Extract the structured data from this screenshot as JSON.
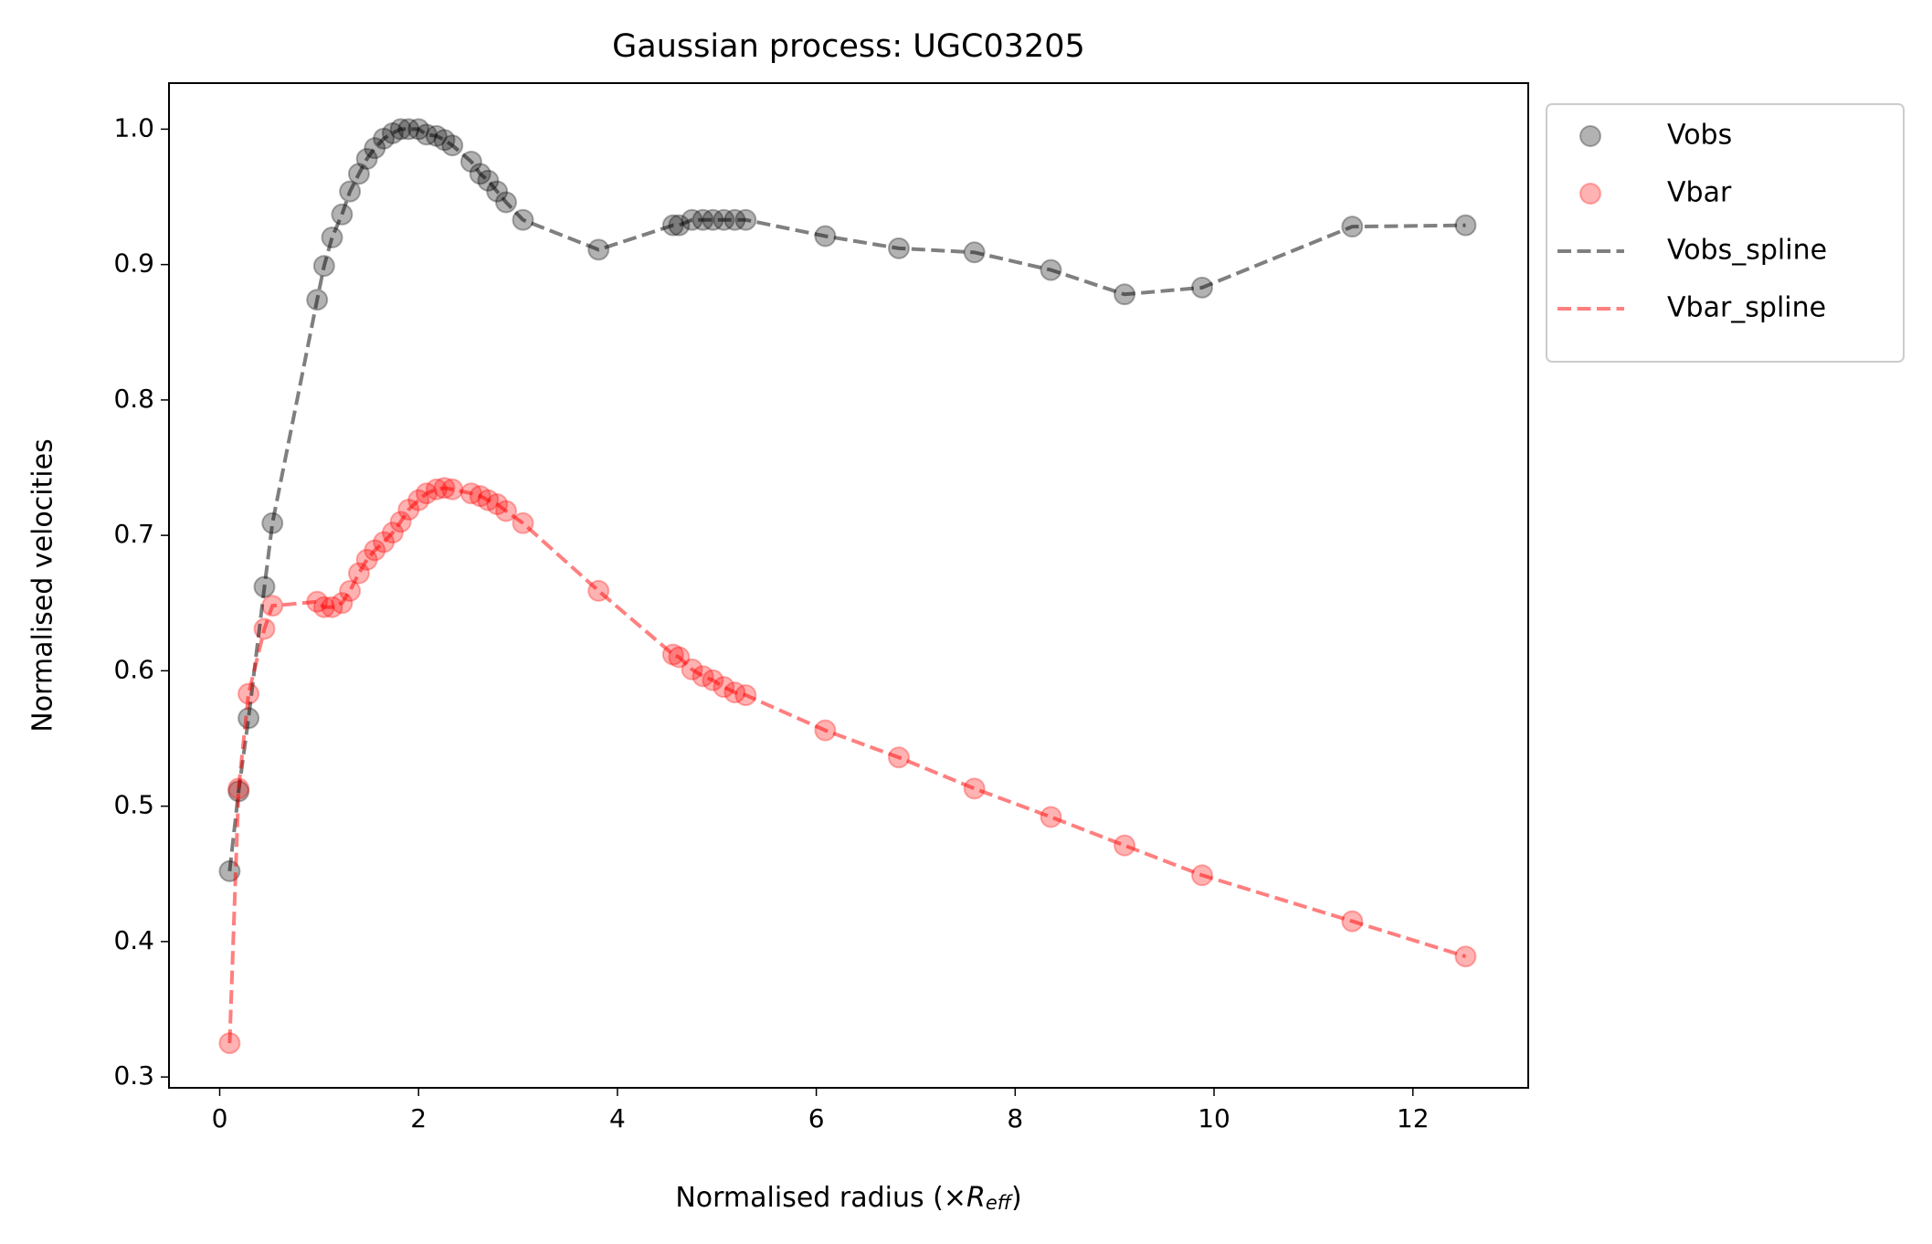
{
  "chart_data": {
    "type": "scatter",
    "title": "Gaussian process: UGC03205",
    "xlabel": [
      "Normalised radius (×",
      "R",
      "eff",
      ")"
    ],
    "ylabel": "Normalised velocities",
    "x": [
      0.1,
      0.19,
      0.29,
      0.45,
      0.53,
      0.98,
      1.05,
      1.13,
      1.23,
      1.31,
      1.4,
      1.48,
      1.56,
      1.65,
      1.74,
      1.82,
      1.9,
      2.0,
      2.08,
      2.18,
      2.26,
      2.34,
      2.53,
      2.62,
      2.7,
      2.79,
      2.88,
      3.05,
      3.81,
      4.56,
      4.62,
      4.75,
      4.86,
      4.96,
      5.07,
      5.18,
      5.29,
      6.09,
      6.83,
      7.59,
      8.36,
      9.1,
      9.88,
      11.39,
      12.53
    ],
    "series": [
      {
        "name": "Vobs",
        "color": "#000000",
        "mode": "markers",
        "values": [
          0.452,
          0.511,
          0.565,
          0.662,
          0.709,
          0.874,
          0.899,
          0.92,
          0.937,
          0.954,
          0.967,
          0.978,
          0.986,
          0.993,
          0.997,
          1.0,
          1.0,
          1.0,
          0.996,
          0.995,
          0.992,
          0.988,
          0.976,
          0.967,
          0.962,
          0.954,
          0.946,
          0.933,
          0.911,
          0.929,
          0.929,
          0.933,
          0.933,
          0.933,
          0.933,
          0.933,
          0.933,
          0.921,
          0.912,
          0.909,
          0.896,
          0.878,
          0.883,
          0.928,
          0.929
        ]
      },
      {
        "name": "Vbar",
        "color": "#ff0000",
        "mode": "markers",
        "values": [
          0.325,
          0.513,
          0.583,
          0.631,
          0.648,
          0.651,
          0.647,
          0.647,
          0.65,
          0.659,
          0.672,
          0.682,
          0.689,
          0.695,
          0.702,
          0.71,
          0.719,
          0.726,
          0.731,
          0.734,
          0.735,
          0.734,
          0.731,
          0.729,
          0.726,
          0.723,
          0.718,
          0.709,
          0.659,
          0.612,
          0.61,
          0.601,
          0.596,
          0.593,
          0.588,
          0.584,
          0.582,
          0.556,
          0.536,
          0.513,
          0.492,
          0.471,
          0.449,
          0.415,
          0.389
        ]
      },
      {
        "name": "Vobs_spline",
        "color": "#000000",
        "mode": "dashed-line",
        "values": [
          0.452,
          0.511,
          0.565,
          0.662,
          0.709,
          0.874,
          0.899,
          0.92,
          0.937,
          0.954,
          0.967,
          0.978,
          0.986,
          0.993,
          0.997,
          1.0,
          1.0,
          1.0,
          0.996,
          0.995,
          0.992,
          0.988,
          0.976,
          0.967,
          0.962,
          0.954,
          0.946,
          0.933,
          0.911,
          0.929,
          0.929,
          0.933,
          0.933,
          0.933,
          0.933,
          0.933,
          0.933,
          0.921,
          0.912,
          0.909,
          0.896,
          0.878,
          0.883,
          0.928,
          0.929
        ]
      },
      {
        "name": "Vbar_spline",
        "color": "#ff0000",
        "mode": "dashed-line",
        "values": [
          0.325,
          0.513,
          0.583,
          0.631,
          0.648,
          0.651,
          0.647,
          0.647,
          0.65,
          0.659,
          0.672,
          0.682,
          0.689,
          0.695,
          0.702,
          0.71,
          0.719,
          0.726,
          0.731,
          0.734,
          0.735,
          0.734,
          0.731,
          0.729,
          0.726,
          0.723,
          0.718,
          0.709,
          0.659,
          0.612,
          0.61,
          0.601,
          0.596,
          0.593,
          0.588,
          0.584,
          0.582,
          0.556,
          0.536,
          0.513,
          0.492,
          0.471,
          0.449,
          0.415,
          0.389
        ]
      }
    ],
    "xlim": [
      -0.51,
      13.16
    ],
    "ylim": [
      0.292,
      1.034
    ],
    "xticks": [
      0,
      2,
      4,
      6,
      8,
      10,
      12
    ],
    "yticks": [
      0.3,
      0.4,
      0.5,
      0.6,
      0.7,
      0.8,
      0.9,
      {
        "value": 1.0,
        "label": "1.0"
      }
    ],
    "grid": false,
    "legend_loc": "outside upper right"
  }
}
